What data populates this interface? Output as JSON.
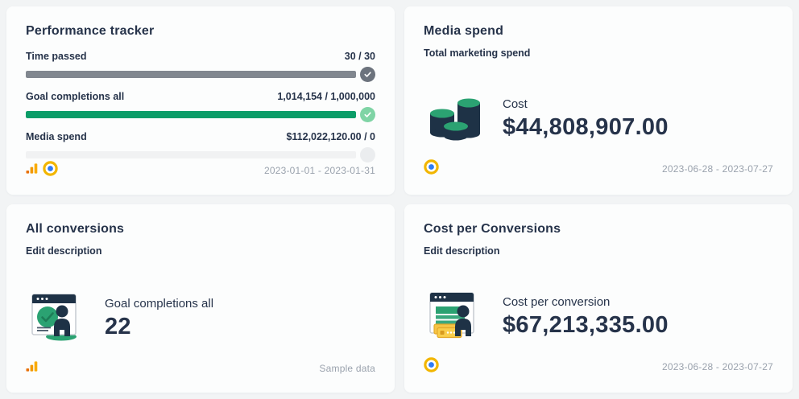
{
  "colors": {
    "page_bg": "#f2f4f5",
    "card_bg": "#fcfdfd",
    "text_dark": "#26334a",
    "text_muted": "#9aa2ad",
    "bar_gray": "#81878f",
    "bar_green": "#0b9d68",
    "bar_empty_track": "#f1f2f3",
    "badge_gray": "#6c737d",
    "badge_green": "#7fd4a5",
    "badge_empty": "#ebedef",
    "analytics_orange_dark": "#e8710a",
    "analytics_orange": "#f9ab00",
    "ads_ring_yellow": "#f2b600",
    "ads_dot_blue": "#2e7cf6",
    "icon_navy": "#1e3246",
    "icon_green": "#2ba272",
    "icon_yellow": "#f6c445"
  },
  "performance_card": {
    "title": "Performance tracker",
    "rows": [
      {
        "label": "Time passed",
        "value": "30 / 30",
        "fill": 100,
        "status": "complete-gray"
      },
      {
        "label": "Goal completions all",
        "value": "1,014,154 / 1,000,000",
        "fill": 100,
        "status": "complete-green"
      },
      {
        "label": "Media spend",
        "value": "$112,022,120.00 / 0",
        "fill": 0,
        "status": "empty"
      }
    ],
    "date_range": "2023-01-01 - 2023-01-31",
    "source_icons": [
      "google-analytics",
      "google-ads"
    ]
  },
  "media_spend_card": {
    "title": "Media spend",
    "subtitle": "Total marketing spend",
    "metric_label": "Cost",
    "metric_value": "$44,808,907.00",
    "date_range": "2023-06-28 - 2023-07-27",
    "source_icons": [
      "google-ads"
    ],
    "illustration": "coin-stacks"
  },
  "all_conversions_card": {
    "title": "All conversions",
    "edit_label": "Edit description",
    "metric_label": "Goal completions all",
    "metric_value": "22",
    "source_note": "Sample data",
    "source_icons": [
      "google-analytics"
    ],
    "illustration": "browser-person-check"
  },
  "cost_per_conversions_card": {
    "title": "Cost per Conversions",
    "edit_label": "Edit description",
    "metric_label": "Cost per conversion",
    "metric_value": "$67,213,335.00",
    "date_range": "2023-06-28 - 2023-07-27",
    "source_icons": [
      "google-ads"
    ],
    "illustration": "browser-person-tickets"
  }
}
